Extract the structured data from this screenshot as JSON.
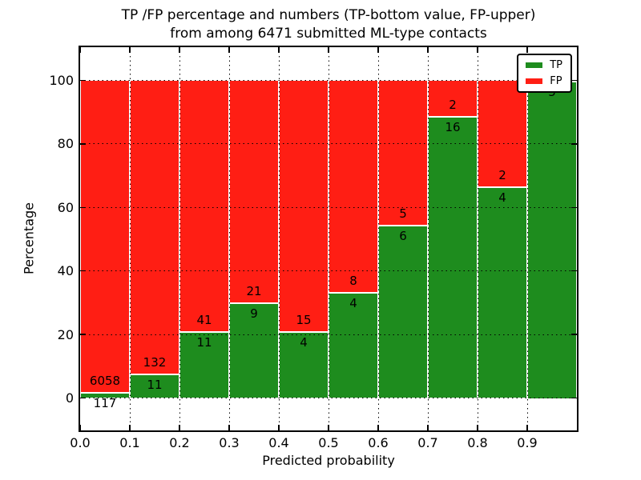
{
  "chart_data": {
    "type": "bar",
    "stacked": true,
    "normalized": "each bin scaled to 100%",
    "title_line1": "TP /FP percentage and numbers (TP-bottom value, FP-upper)",
    "title_line2": "from among 6471 submitted ML-type contacts",
    "xlabel": "Predicted probability",
    "ylabel": "Percentage",
    "total_contacts": 6471,
    "bin_edges": [
      0.0,
      0.1,
      0.2,
      0.3,
      0.4,
      0.5,
      0.6,
      0.7,
      0.8,
      0.9,
      1.0
    ],
    "x_tick_labels": [
      "0.0",
      "0.1",
      "0.2",
      "0.3",
      "0.4",
      "0.5",
      "0.6",
      "0.7",
      "0.8",
      "0.9"
    ],
    "y_tick_values": [
      0,
      20,
      40,
      60,
      80,
      100
    ],
    "y_tick_labels": [
      "0",
      "20",
      "40",
      "60",
      "80",
      "100"
    ],
    "xlim": [
      0.0,
      1.0
    ],
    "ylim": [
      -10.5,
      110.5
    ],
    "grid": true,
    "legend_position": "upper right",
    "series": [
      {
        "name": "TP",
        "color": "#1e8c1e",
        "values": [
          117,
          11,
          11,
          9,
          4,
          4,
          6,
          16,
          4,
          5
        ]
      },
      {
        "name": "FP",
        "color": "#ff1e14",
        "values": [
          6058,
          132,
          41,
          21,
          15,
          8,
          5,
          2,
          2,
          0
        ]
      }
    ],
    "tp_percent_by_bin": [
      1.89,
      7.69,
      21.15,
      30.0,
      21.05,
      33.33,
      54.55,
      88.89,
      66.67,
      100.0
    ],
    "legend": {
      "entries": [
        {
          "label": "TP",
          "color": "#1e8c1e"
        },
        {
          "label": "FP",
          "color": "#ff1e14"
        }
      ]
    },
    "colors": {
      "tp_green": "#1e8c1e",
      "fp_red": "#ff1e14",
      "background": "#ffffff",
      "grid_and_text": "#000000",
      "segment_separator": "#ffffff"
    }
  }
}
